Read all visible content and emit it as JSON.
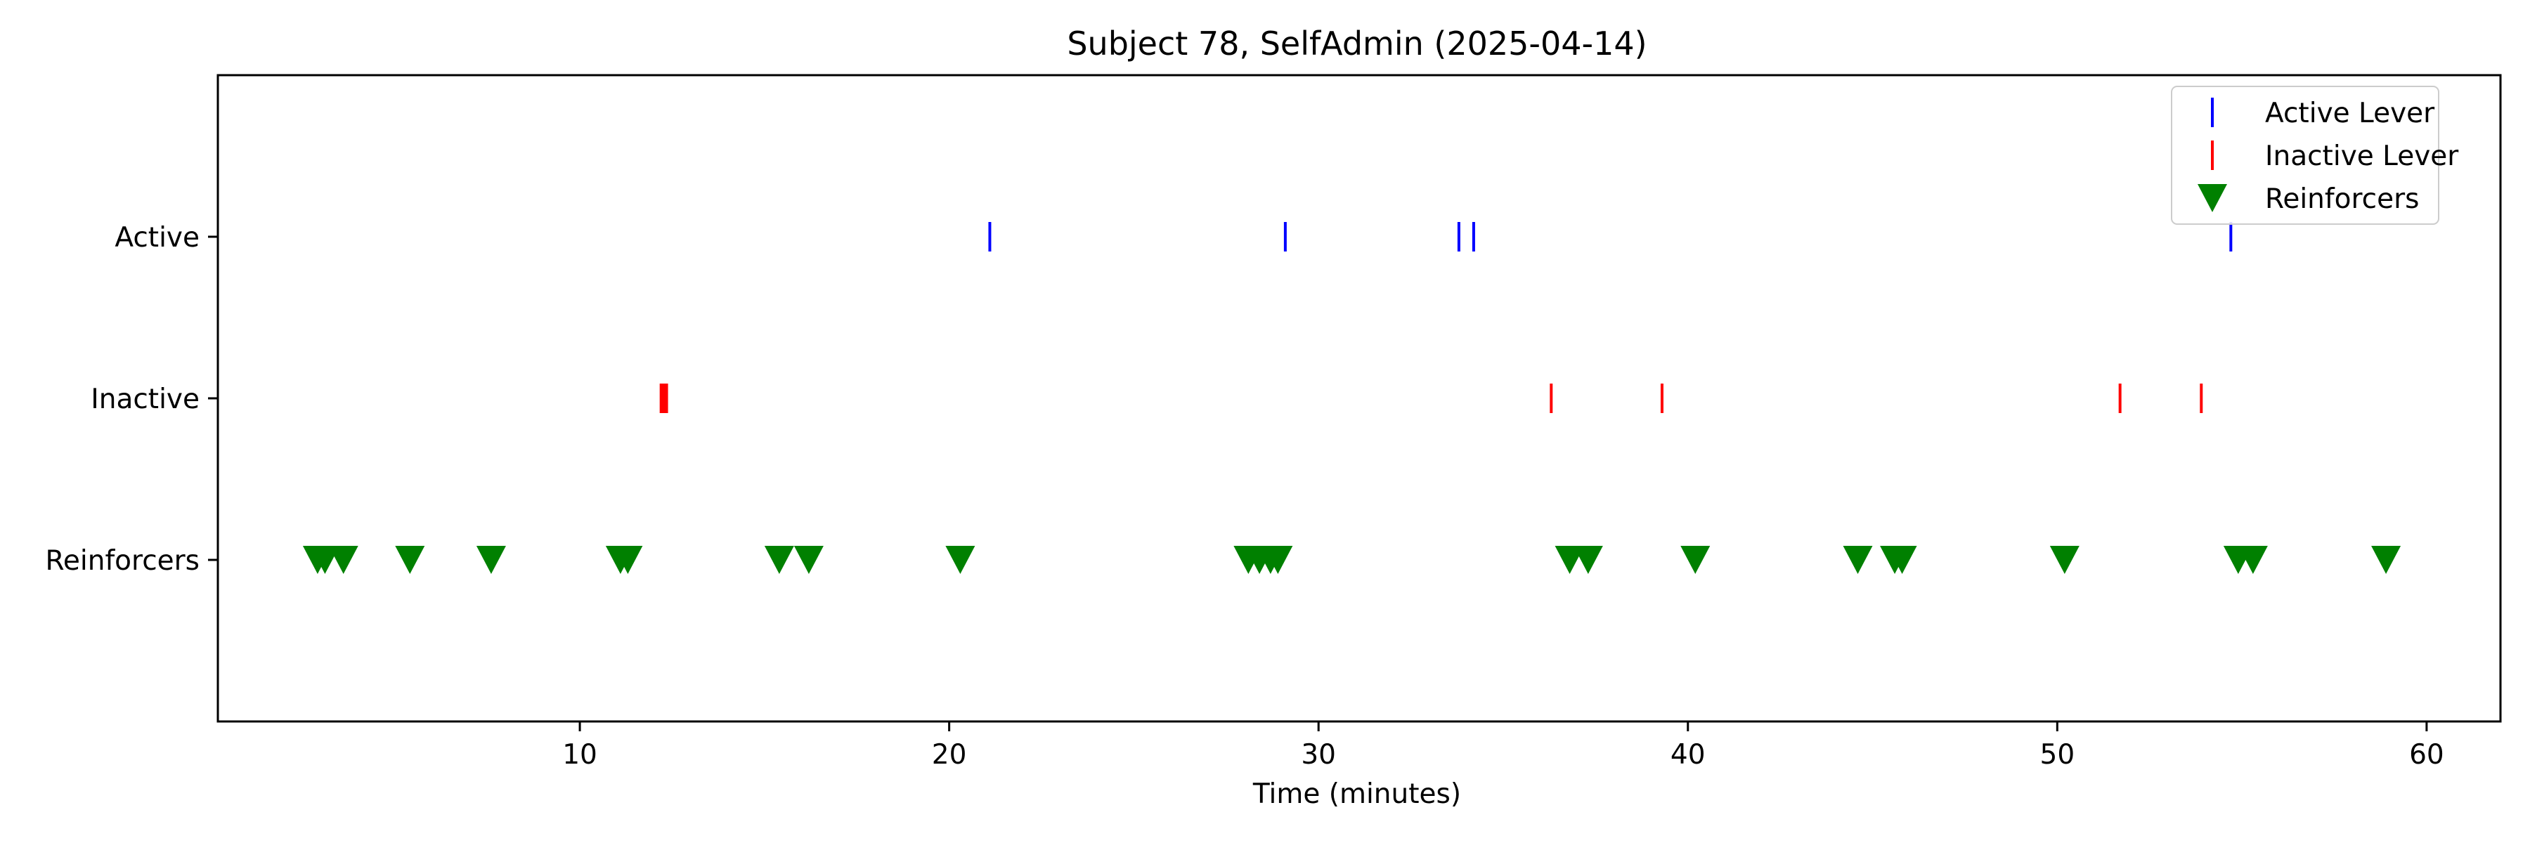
{
  "chart_data": {
    "type": "scatter",
    "title": "Subject 78, SelfAdmin (2025-04-14)",
    "xlabel": "Time (minutes)",
    "ylabel": "",
    "xlim": [
      0.2,
      62
    ],
    "xticks": [
      10,
      20,
      30,
      40,
      50,
      60
    ],
    "categories": [
      "Active",
      "Inactive",
      "Reinforcers"
    ],
    "grid": false,
    "legend_position": "top-right",
    "series": [
      {
        "name": "Active Lever",
        "category": "Active",
        "marker": "vertical-line",
        "color": "#0000ff",
        "x": [
          21.1,
          29.1,
          33.8,
          34.2,
          54.7
        ]
      },
      {
        "name": "Inactive Lever",
        "category": "Inactive",
        "marker": "vertical-line",
        "color": "#ff0000",
        "x": [
          12.2,
          12.25,
          12.3,
          12.35,
          36.3,
          39.3,
          51.7,
          53.9
        ]
      },
      {
        "name": "Reinforcers",
        "category": "Reinforcers",
        "marker": "triangle-down",
        "color": "#008000",
        "x": [
          2.9,
          3.1,
          3.6,
          5.4,
          7.6,
          11.1,
          11.3,
          15.4,
          16.2,
          20.3,
          28.1,
          28.4,
          28.7,
          28.9,
          36.8,
          37.3,
          40.2,
          44.6,
          45.6,
          45.8,
          50.2,
          54.9,
          55.3,
          58.9
        ]
      }
    ]
  }
}
